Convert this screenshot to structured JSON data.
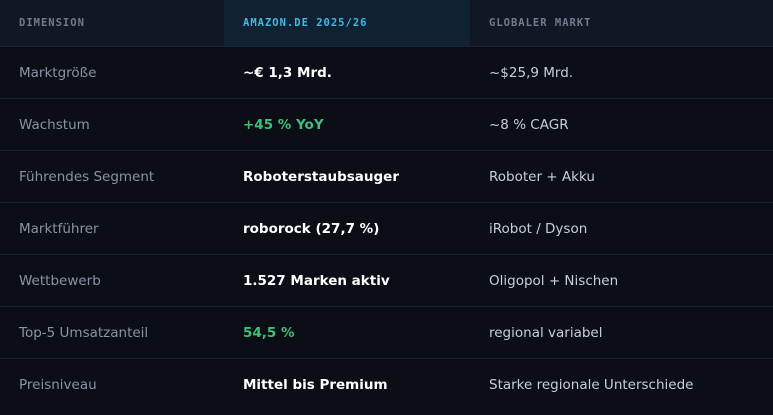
{
  "headers": {
    "dimension": "DIMENSION",
    "amazon": "AMAZON.DE 2025/26",
    "global": "GLOBALER MARKT"
  },
  "rows": [
    {
      "dimension": "Marktgröße",
      "amazon": "~€ 1,3 Mrd.",
      "global": "~$25,9 Mrd.",
      "amazon_positive": false
    },
    {
      "dimension": "Wachstum",
      "amazon": "+45 % YoY",
      "global": "~8 % CAGR",
      "amazon_positive": true
    },
    {
      "dimension": "Führendes Segment",
      "amazon": "Roboterstaubsauger",
      "global": "Roboter + Akku",
      "amazon_positive": false
    },
    {
      "dimension": "Marktführer",
      "amazon": "roborock (27,7 %)",
      "global": "iRobot / Dyson",
      "amazon_positive": false
    },
    {
      "dimension": "Wettbewerb",
      "amazon": "1.527 Marken aktiv",
      "global": "Oligopol + Nischen",
      "amazon_positive": false
    },
    {
      "dimension": "Top-5 Umsatzanteil",
      "amazon": "54,5 %",
      "global": "regional variabel",
      "amazon_positive": true
    },
    {
      "dimension": "Preisniveau",
      "amazon": "Mittel bis Premium",
      "global": "Starke regionale Unterschiede",
      "amazon_positive": false
    }
  ],
  "colors": {
    "highlight_header": "#42b8e6",
    "positive": "#3fbf78"
  }
}
